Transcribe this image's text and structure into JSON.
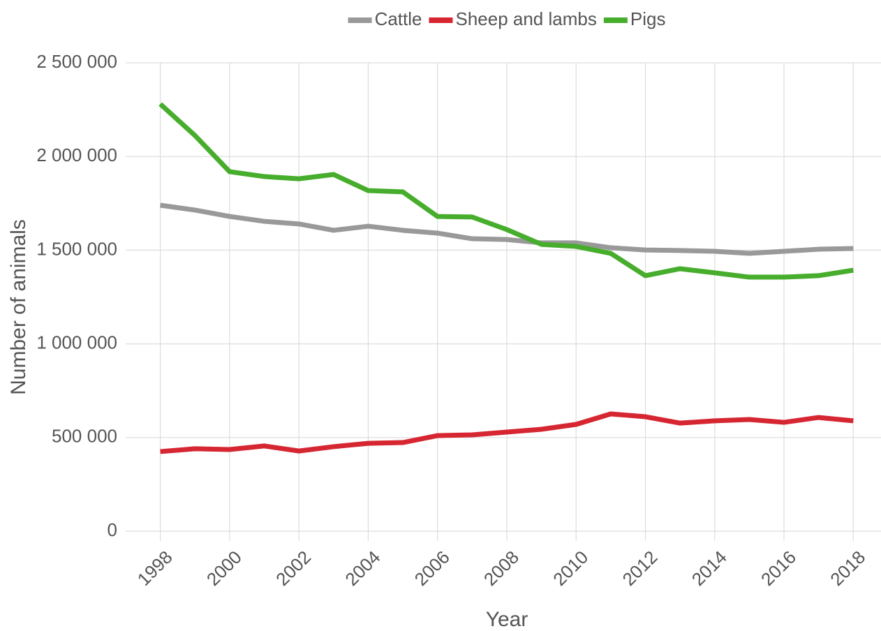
{
  "chart_data": {
    "type": "line",
    "x_label": "Year",
    "y_label": "Number of animals",
    "x": [
      1998,
      1999,
      2000,
      2001,
      2002,
      2003,
      2004,
      2005,
      2006,
      2007,
      2008,
      2009,
      2010,
      2011,
      2012,
      2013,
      2014,
      2015,
      2016,
      2017,
      2018
    ],
    "series": [
      {
        "name": "Cattle",
        "color": "#999999",
        "values": [
          1740000,
          1714000,
          1680000,
          1654000,
          1640000,
          1606000,
          1628000,
          1606000,
          1591000,
          1561000,
          1557000,
          1539000,
          1539000,
          1513000,
          1501000,
          1498000,
          1494000,
          1483000,
          1494000,
          1505000,
          1509000
        ]
      },
      {
        "name": "Sheep and lambs",
        "color": "#d62631",
        "values": [
          425000,
          440000,
          436000,
          455000,
          428000,
          451000,
          469000,
          473000,
          510000,
          514000,
          529000,
          544000,
          570000,
          626000,
          611000,
          577000,
          589000,
          596000,
          581000,
          607000,
          589000
        ]
      },
      {
        "name": "Pigs",
        "color": "#47ad2c",
        "values": [
          2280000,
          2112000,
          1919000,
          1893000,
          1881000,
          1904000,
          1818000,
          1811000,
          1680000,
          1677000,
          1610000,
          1531000,
          1520000,
          1483000,
          1364000,
          1401000,
          1379000,
          1356000,
          1356000,
          1364000,
          1393000
        ]
      }
    ],
    "xlim": [
      1997,
      2018.8
    ],
    "xticks": [
      1998,
      2000,
      2002,
      2004,
      2006,
      2008,
      2010,
      2012,
      2014,
      2016,
      2018
    ],
    "ylim": [
      0,
      2500000
    ],
    "yticks": [
      0,
      {
        "value": 500000,
        "label": "500 000"
      },
      {
        "value": 1000000,
        "label": "1 000 000"
      },
      {
        "value": 1500000,
        "label": "1 500 000"
      },
      {
        "value": 2000000,
        "label": "2 000 000"
      },
      {
        "value": 2500000,
        "label": "2 500 000"
      }
    ],
    "grid": true,
    "legend": "top"
  }
}
